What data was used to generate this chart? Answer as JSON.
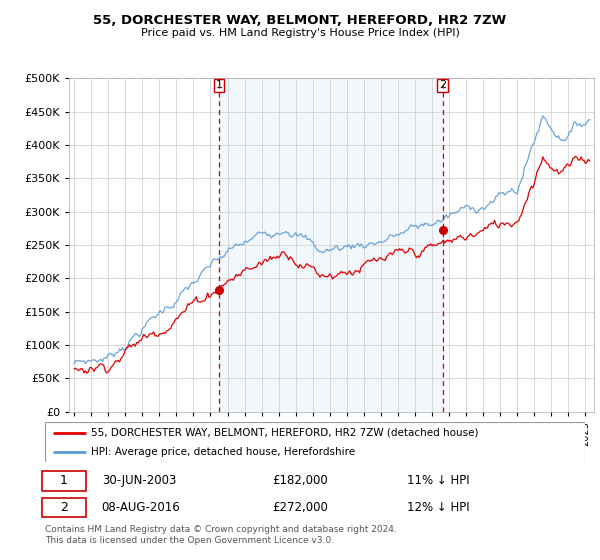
{
  "title": "55, DORCHESTER WAY, BELMONT, HEREFORD, HR2 7ZW",
  "subtitle": "Price paid vs. HM Land Registry's House Price Index (HPI)",
  "legend_line1": "55, DORCHESTER WAY, BELMONT, HEREFORD, HR2 7ZW (detached house)",
  "legend_line2": "HPI: Average price, detached house, Herefordshire",
  "transaction1_date": "30-JUN-2003",
  "transaction1_price": "£182,000",
  "transaction1_hpi": "11% ↓ HPI",
  "transaction2_date": "08-AUG-2016",
  "transaction2_price": "£272,000",
  "transaction2_hpi": "12% ↓ HPI",
  "footnote": "Contains HM Land Registry data © Crown copyright and database right 2024.\nThis data is licensed under the Open Government Licence v3.0.",
  "hpi_color": "#5b9bd5",
  "price_color": "#e00000",
  "marker_color": "#cc0000",
  "vline_color": "#cc0000",
  "shade_color": "#dce9f7",
  "background_color": "#ffffff",
  "grid_color": "#cccccc",
  "chart_bg": "#ffffff",
  "ylim": [
    0,
    500000
  ],
  "yticks": [
    0,
    50000,
    100000,
    150000,
    200000,
    250000,
    300000,
    350000,
    400000,
    450000,
    500000
  ],
  "transaction1_x": 2003.5,
  "transaction1_y": 182000,
  "transaction2_x": 2016.625,
  "transaction2_y": 272000,
  "xmin": 1994.7,
  "xmax": 2025.5
}
